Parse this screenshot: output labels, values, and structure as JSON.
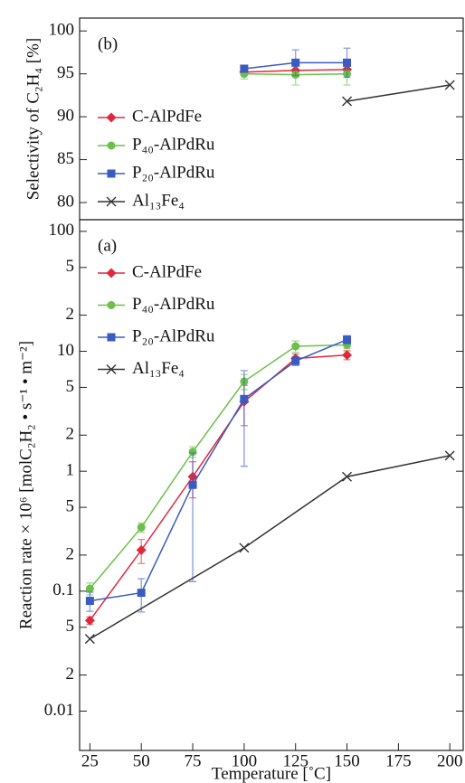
{
  "chart_data": [
    {
      "type": "line",
      "annotation": "(b)",
      "ylabel": "Selectivity of C₂H₄ [%]",
      "xlim": [
        20,
        206.5
      ],
      "ylim": [
        78,
        101.5
      ],
      "yticks": [
        80,
        85,
        90,
        95,
        100
      ],
      "legend": "center left",
      "series": [
        {
          "name": "C-AlPdFe",
          "color": "#e0283c",
          "marker": "diamond",
          "x": [
            100,
            125,
            150
          ],
          "values": [
            95.2,
            95.4,
            95.5
          ],
          "errors": [
            null,
            null,
            null
          ]
        },
        {
          "name": "P₄₀-AlPdRu",
          "color": "#6cc04a",
          "marker": "circle",
          "x": [
            100,
            125,
            150
          ],
          "values": [
            95.0,
            94.9,
            95.0
          ],
          "errors": [
            0.6,
            1.2,
            1.3
          ]
        },
        {
          "name": "P₂₀-AlPdRu",
          "color": "#3a5bbf",
          "marker": "square",
          "x": [
            100,
            125,
            150
          ],
          "values": [
            95.6,
            96.3,
            96.3
          ],
          "errors": [
            null,
            1.5,
            1.7
          ]
        },
        {
          "name": "Al₁₃Fe₄",
          "color": "#333333",
          "marker": "x",
          "x": [
            150,
            200
          ],
          "values": [
            91.8,
            93.7
          ],
          "errors": [
            null,
            null
          ]
        }
      ]
    },
    {
      "type": "line",
      "annotation": "(a)",
      "ylabel": "Reaction rate × 10⁶ [molC₂H₂ • s⁻¹ • m⁻²]",
      "xlabel": "Temperature [˚C]",
      "log_y": true,
      "xlim": [
        20,
        206.5
      ],
      "xticks": [
        25,
        50,
        75,
        100,
        125,
        150,
        175,
        200
      ],
      "ylim": [
        0.0047,
        125
      ],
      "yticks": [
        100,
        {
          "value": 50,
          "label": "5"
        },
        {
          "value": 20,
          "label": "2"
        },
        10,
        5,
        2,
        1,
        {
          "value": 0.5,
          "label": "5"
        },
        {
          "value": 0.2,
          "label": "2"
        },
        0.1,
        {
          "value": 0.05,
          "label": "5"
        },
        {
          "value": 0.02,
          "label": "2"
        },
        0.01
      ],
      "legend": "upper left",
      "series": [
        {
          "name": "C-AlPdFe",
          "color": "#e0283c",
          "marker": "diamond",
          "x": [
            25,
            50,
            75,
            100,
            125,
            150
          ],
          "values": [
            0.057,
            0.22,
            0.9,
            3.8,
            8.7,
            9.3
          ],
          "errors": [
            0.004,
            0.05,
            0.3,
            1.4,
            0.8,
            0.8
          ]
        },
        {
          "name": "P₄₀-AlPdRu",
          "color": "#6cc04a",
          "marker": "circle",
          "x": [
            25,
            50,
            75,
            100,
            125,
            150
          ],
          "values": [
            0.105,
            0.34,
            1.45,
            5.6,
            11,
            11.3
          ],
          "errors": [
            0.012,
            0.03,
            0.15,
            0.8,
            1.2,
            0.8
          ]
        },
        {
          "name": "P₂₀-AlPdRu",
          "color": "#3a5bbf",
          "marker": "square",
          "x": [
            25,
            50,
            75,
            100,
            125,
            150
          ],
          "values": [
            0.083,
            0.097,
            0.77,
            4.0,
            8.3,
            12.5
          ],
          "errors": [
            0.015,
            0.03,
            0.65,
            2.9,
            0.7,
            1.0
          ]
        },
        {
          "name": "Al₁₃Fe₄",
          "color": "#333333",
          "marker": "x",
          "x": [
            25,
            100,
            150,
            200
          ],
          "values": [
            0.04,
            0.23,
            0.9,
            1.35
          ],
          "errors": [
            null,
            null,
            null,
            null
          ]
        }
      ]
    }
  ]
}
